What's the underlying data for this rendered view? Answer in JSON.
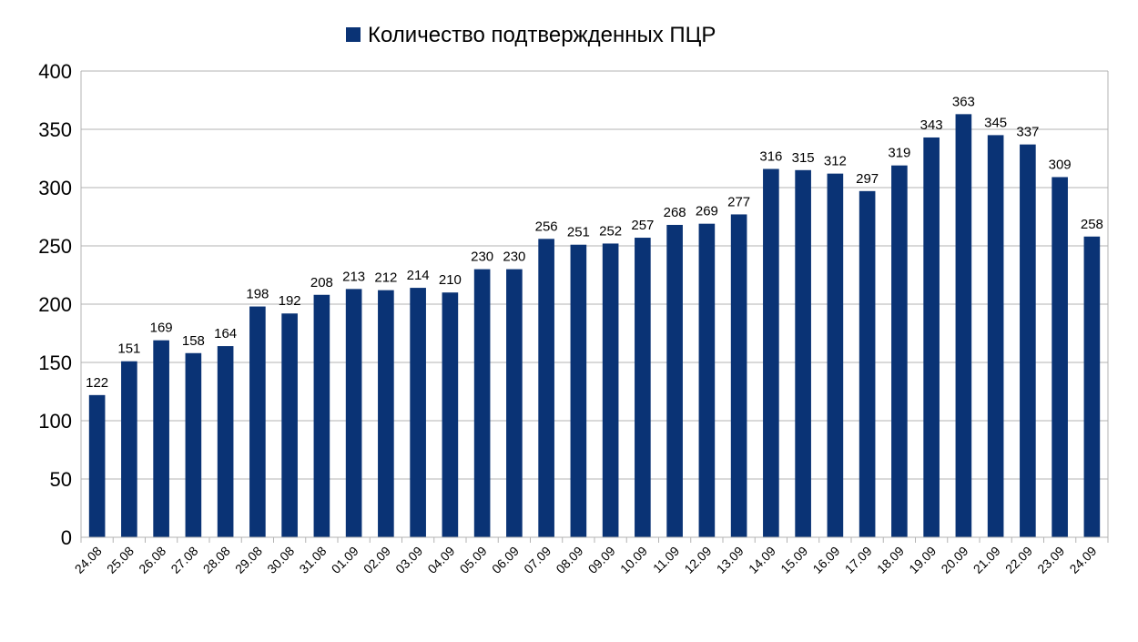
{
  "chart_data": {
    "type": "bar",
    "legend_position": "top-center",
    "grid": true,
    "ylim": [
      0,
      400
    ],
    "y_ticks": [
      0,
      50,
      100,
      150,
      200,
      250,
      300,
      350,
      400
    ],
    "categories": [
      "24.08",
      "25.08",
      "26.08",
      "27.08",
      "28.08",
      "29.08",
      "30.08",
      "31.08",
      "01.09",
      "02.09",
      "03.09",
      "04.09",
      "05.09",
      "06.09",
      "07.09",
      "08.09",
      "09.09",
      "10.09",
      "11.09",
      "12.09",
      "13.09",
      "14.09",
      "15.09",
      "16.09",
      "17.09",
      "18.09",
      "19.09",
      "20.09",
      "21.09",
      "22.09",
      "23.09",
      "24.09"
    ],
    "series": [
      {
        "name": "Количество подтвержденных ПЦР",
        "color": "#0a3375",
        "values": [
          122,
          151,
          169,
          158,
          164,
          198,
          192,
          208,
          213,
          212,
          214,
          210,
          230,
          230,
          256,
          251,
          252,
          257,
          268,
          269,
          277,
          316,
          315,
          312,
          297,
          319,
          343,
          363,
          345,
          337,
          309,
          258
        ]
      }
    ]
  }
}
